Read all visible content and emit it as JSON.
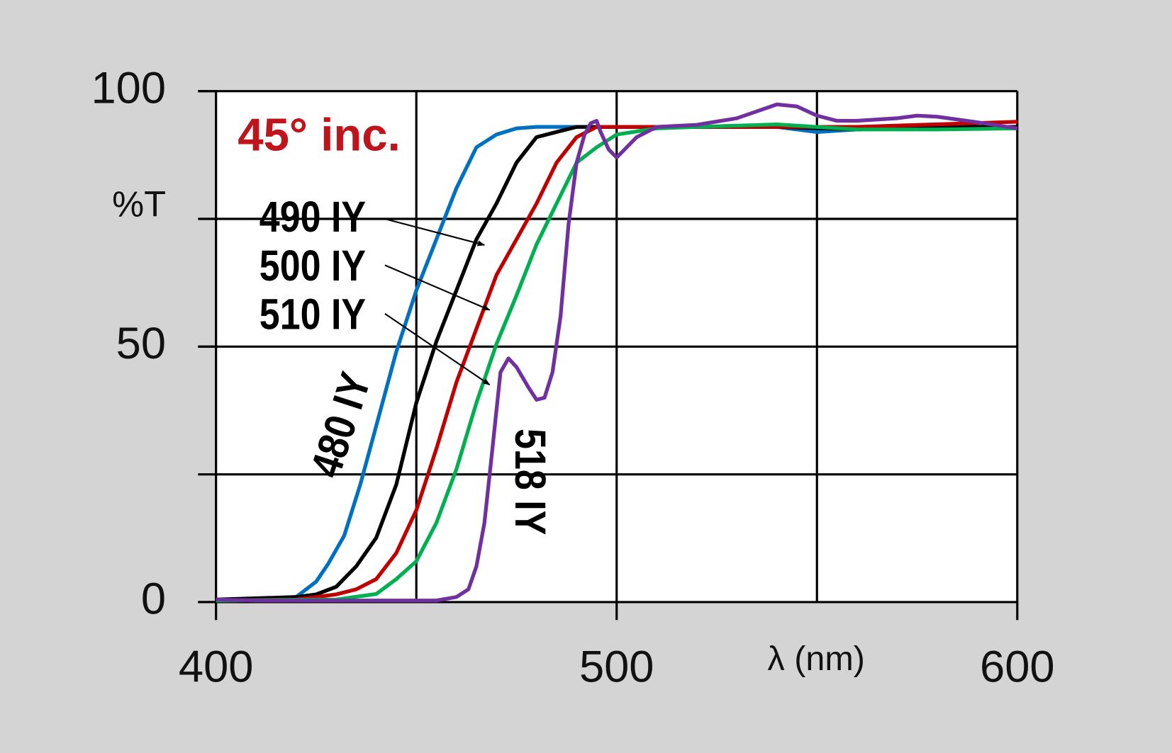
{
  "chart_data": {
    "type": "line",
    "title": "45° inc.",
    "y_label": "%T",
    "x_label": "λ (nm)",
    "title_color": "#c0141c",
    "xlim": [
      400,
      600
    ],
    "xticks": [
      400,
      500,
      600
    ],
    "xgrid": [
      400,
      450,
      500,
      550,
      600
    ],
    "ylim": [
      0,
      100
    ],
    "yticks": [
      0,
      50,
      100
    ],
    "ygrid": [
      0,
      25,
      50,
      75,
      100
    ],
    "grid": true,
    "series": [
      {
        "name": "480 IY",
        "color": "#0070c0",
        "x": [
          400,
          410,
          420,
          425,
          428,
          432,
          436,
          440,
          445,
          450,
          455,
          460,
          465,
          470,
          475,
          480,
          490,
          500,
          520,
          540,
          550,
          560,
          580,
          600
        ],
        "values": [
          0.5,
          0.5,
          1,
          4,
          7.5,
          13,
          23,
          34.5,
          49,
          61,
          71,
          81,
          89,
          91.5,
          92.7,
          93,
          93,
          93,
          93,
          93,
          92,
          92.5,
          93,
          93
        ]
      },
      {
        "name": "490 IY",
        "color": "#000000",
        "x": [
          400,
          420,
          425,
          430,
          435,
          440,
          445,
          450,
          455,
          460,
          465,
          470,
          475,
          480,
          485,
          490,
          500,
          520,
          540,
          560,
          580,
          600
        ],
        "values": [
          0.5,
          1,
          1.5,
          3,
          7,
          12.6,
          23,
          39,
          51,
          61,
          71,
          78,
          86,
          91,
          92,
          93,
          93,
          93,
          93,
          92.5,
          93,
          93
        ]
      },
      {
        "name": "500 IY",
        "color": "#c00000",
        "x": [
          400,
          420,
          430,
          435,
          440,
          445,
          450,
          455,
          460,
          465,
          470,
          475,
          480,
          485,
          490,
          495,
          500,
          520,
          560,
          600
        ],
        "values": [
          0.3,
          0.5,
          1.5,
          2.5,
          4.5,
          9.6,
          18,
          30,
          43,
          53.5,
          64,
          71,
          78,
          86,
          91,
          93,
          93,
          93,
          93,
          94
        ]
      },
      {
        "name": "510 IY",
        "color": "#00b050",
        "x": [
          400,
          430,
          440,
          445,
          450,
          455,
          460,
          465,
          470,
          475,
          480,
          485,
          490,
          495,
          500,
          510,
          520,
          540,
          560,
          580,
          600
        ],
        "values": [
          0.3,
          0.5,
          1.6,
          4.5,
          8,
          15.5,
          26,
          39,
          50.5,
          60,
          70,
          78,
          86,
          89,
          91.5,
          92.7,
          93,
          93.5,
          92.5,
          92.5,
          92.7
        ]
      },
      {
        "name": "518 IY",
        "color": "#7030a0",
        "x": [
          400,
          410,
          420,
          440,
          455,
          460,
          463,
          465,
          467,
          469,
          471,
          473,
          475,
          478,
          480,
          482,
          484,
          486,
          488,
          490,
          492,
          493.5,
          495,
          496,
          498,
          500,
          502,
          505,
          510,
          520,
          530,
          540,
          545,
          550,
          555,
          560,
          570,
          575,
          580,
          590,
          600
        ],
        "values": [
          0.5,
          0.3,
          0.3,
          0.3,
          0.3,
          1,
          2.5,
          7,
          15.5,
          30,
          45,
          47.7,
          46,
          42,
          39.6,
          40,
          45,
          56,
          74,
          86,
          91.5,
          93.7,
          94.2,
          92,
          88.6,
          87,
          88.6,
          91,
          93,
          93.4,
          94.7,
          97.4,
          97,
          95.2,
          94.2,
          94.2,
          94.7,
          95.2,
          95,
          93.9,
          92.7
        ]
      }
    ]
  }
}
